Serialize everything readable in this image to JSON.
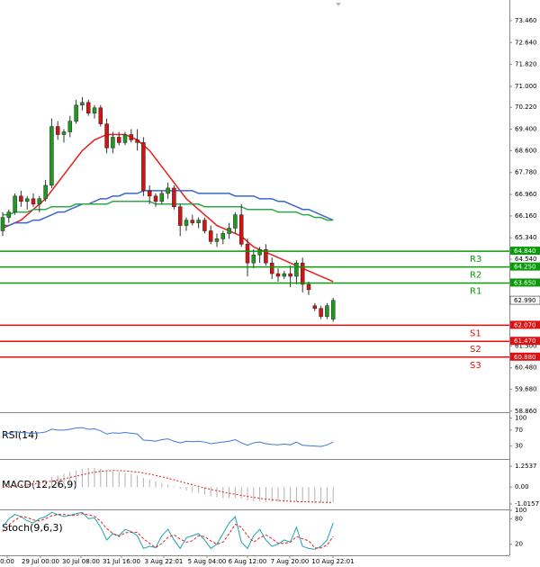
{
  "chart_data": {
    "type": "candlestick",
    "open": [
      65.6,
      66.1,
      66.3,
      66.9,
      66.7,
      66.8,
      66.6,
      66.8,
      67.3,
      69.5,
      69.2,
      69.3,
      69.7,
      70.3,
      70.4,
      70.0,
      70.2,
      69.6,
      68.7,
      69.1,
      68.9,
      69.2,
      69.0,
      68.9,
      67.1,
      66.9,
      66.7,
      67.0,
      67.2,
      66.5,
      65.8,
      66.0,
      65.9,
      66.0,
      65.6,
      65.2,
      65.3,
      65.5,
      65.7,
      66.2,
      65.1,
      64.4,
      64.7,
      64.9,
      64.4,
      64.0,
      63.9,
      64.0,
      63.9,
      64.4,
      63.6,
      62.8,
      62.7,
      62.4,
      62.3
    ],
    "high": [
      66.3,
      66.4,
      67.0,
      67.1,
      66.9,
      67.0,
      66.9,
      67.5,
      69.8,
      69.7,
      69.4,
      69.9,
      70.5,
      70.6,
      70.5,
      70.3,
      70.3,
      69.8,
      69.3,
      69.3,
      69.3,
      69.4,
      69.4,
      69.1,
      67.3,
      67.0,
      67.1,
      67.4,
      67.3,
      66.6,
      66.1,
      66.2,
      66.1,
      66.1,
      65.8,
      65.5,
      65.6,
      65.9,
      66.3,
      66.6,
      65.3,
      64.9,
      65.0,
      65.1,
      64.6,
      64.2,
      64.1,
      64.3,
      64.5,
      64.6,
      63.7,
      62.9,
      62.8,
      62.9,
      63.1
    ],
    "low": [
      65.4,
      65.9,
      66.2,
      66.5,
      66.4,
      66.5,
      66.3,
      66.7,
      67.2,
      69.0,
      68.9,
      69.1,
      69.6,
      70.1,
      69.9,
      69.8,
      69.5,
      68.5,
      68.5,
      68.8,
      68.8,
      68.9,
      68.6,
      66.9,
      66.6,
      66.5,
      66.6,
      66.8,
      66.4,
      65.4,
      65.6,
      65.8,
      65.7,
      65.5,
      65.1,
      65.0,
      65.1,
      65.3,
      65.5,
      65.0,
      63.9,
      64.2,
      64.4,
      64.3,
      63.8,
      63.7,
      63.8,
      63.5,
      63.6,
      63.3,
      63.2,
      62.6,
      62.3,
      62.3,
      62.2
    ],
    "close": [
      66.1,
      66.3,
      66.9,
      66.7,
      66.8,
      66.6,
      66.8,
      67.3,
      69.5,
      69.2,
      69.3,
      69.7,
      70.3,
      70.4,
      70.0,
      70.2,
      69.6,
      68.7,
      69.1,
      68.9,
      69.2,
      69.0,
      68.9,
      67.1,
      66.9,
      66.7,
      67.0,
      67.2,
      66.5,
      65.8,
      66.0,
      65.9,
      66.0,
      65.6,
      65.2,
      65.3,
      65.5,
      65.7,
      66.2,
      65.1,
      64.4,
      64.7,
      64.9,
      64.4,
      64.0,
      63.9,
      64.0,
      63.9,
      64.4,
      63.6,
      63.4,
      62.7,
      62.4,
      62.8,
      63.0
    ],
    "up_color": "#1f9a1f",
    "down_color": "#d41414",
    "ylim": [
      58.82,
      74.23
    ],
    "yticks": [
      {
        "value": 73.46,
        "label": "73.460"
      },
      {
        "value": 72.64,
        "label": "72.640"
      },
      {
        "value": 71.82,
        "label": "71.820"
      },
      {
        "value": 71.0,
        "label": "71.000"
      },
      {
        "value": 70.22,
        "label": "70.220"
      },
      {
        "value": 69.4,
        "label": "69.400"
      },
      {
        "value": 68.6,
        "label": "68.600"
      },
      {
        "value": 67.78,
        "label": "67.780"
      },
      {
        "value": 66.96,
        "label": "66.960"
      },
      {
        "value": 66.16,
        "label": "66.160"
      },
      {
        "value": 65.34,
        "label": "65.340"
      },
      {
        "value": 64.54,
        "label": "64.540"
      },
      {
        "value": 61.3,
        "label": "61.300"
      },
      {
        "value": 60.48,
        "label": "60.480"
      },
      {
        "value": 59.68,
        "label": "59.680"
      },
      {
        "value": 58.86,
        "label": "58.860"
      }
    ],
    "lines": [
      {
        "color": "#e8201a",
        "values": [
          65.7,
          65.8,
          65.9,
          66.0,
          66.2,
          66.4,
          66.6,
          66.8,
          67.1,
          67.4,
          67.7,
          68.0,
          68.3,
          68.6,
          68.8,
          69.0,
          69.1,
          69.2,
          69.2,
          69.2,
          69.2,
          69.1,
          69.0,
          68.8,
          68.6,
          68.3,
          68.0,
          67.7,
          67.4,
          67.1,
          66.8,
          66.6,
          66.4,
          66.2,
          66.0,
          65.8,
          65.7,
          65.6,
          65.5,
          65.4,
          65.2,
          65.0,
          64.9,
          64.8,
          64.7,
          64.6,
          64.5,
          64.4,
          64.3,
          64.2,
          64.1,
          64.0,
          63.9,
          63.8,
          63.7
        ]
      },
      {
        "color": "#3a66d0",
        "values": [
          65.8,
          65.8,
          65.9,
          65.9,
          65.9,
          66.0,
          66.0,
          66.1,
          66.2,
          66.3,
          66.3,
          66.4,
          66.5,
          66.6,
          66.6,
          66.7,
          66.8,
          66.8,
          66.9,
          66.9,
          67.0,
          67.0,
          67.0,
          67.1,
          67.1,
          67.1,
          67.1,
          67.1,
          67.1,
          67.1,
          67.1,
          67.1,
          67.0,
          67.0,
          67.0,
          67.0,
          67.0,
          67.0,
          66.9,
          66.9,
          66.9,
          66.9,
          66.8,
          66.8,
          66.8,
          66.7,
          66.7,
          66.6,
          66.5,
          66.4,
          66.4,
          66.3,
          66.2,
          66.1,
          66.0
        ]
      },
      {
        "color": "#2fa84a",
        "values": [
          66.2,
          66.2,
          66.3,
          66.3,
          66.3,
          66.4,
          66.4,
          66.4,
          66.5,
          66.5,
          66.5,
          66.5,
          66.6,
          66.6,
          66.6,
          66.6,
          66.6,
          66.6,
          66.7,
          66.7,
          66.7,
          66.7,
          66.7,
          66.7,
          66.7,
          66.6,
          66.6,
          66.6,
          66.6,
          66.6,
          66.6,
          66.6,
          66.6,
          66.5,
          66.5,
          66.5,
          66.5,
          66.5,
          66.5,
          66.5,
          66.4,
          66.4,
          66.4,
          66.4,
          66.4,
          66.3,
          66.3,
          66.3,
          66.3,
          66.2,
          66.2,
          66.1,
          66.1,
          66.0,
          66.0
        ]
      }
    ],
    "levels": [
      {
        "label": "R3",
        "value": 64.84,
        "value_label": "64.840",
        "color": "#0a9a0a"
      },
      {
        "label": "R2",
        "value": 64.25,
        "value_label": "64.250",
        "color": "#0a9a0a"
      },
      {
        "label": "R1",
        "value": 63.65,
        "value_label": "63.650",
        "color": "#0a9a0a"
      },
      {
        "label": "S1",
        "value": 62.07,
        "value_label": "62.070",
        "color": "#e01010"
      },
      {
        "label": "S2",
        "value": 61.47,
        "value_label": "61.470",
        "color": "#e01010"
      },
      {
        "label": "S3",
        "value": 60.88,
        "value_label": "60.880",
        "color": "#e01010"
      }
    ],
    "current": {
      "value": 62.99,
      "label": "62.990"
    },
    "xlabels": [
      "0:00",
      "29 Jul 00:00",
      "30 Jul 08:00",
      "31 Jul 16:00",
      "3 Aug 22:01",
      "5 Aug 04:00",
      "6 Aug 12:00",
      "7 Aug 20:00",
      "10 Aug 22:01"
    ],
    "rsi": {
      "title": "RSI(14)",
      "color": "#3a7ad8",
      "ylim": [
        0,
        110
      ],
      "yticks": [
        100,
        70,
        30
      ],
      "values": [
        60,
        62,
        66,
        64,
        63,
        62,
        63,
        65,
        72,
        70,
        70,
        72,
        75,
        76,
        72,
        73,
        68,
        60,
        63,
        62,
        64,
        62,
        60,
        45,
        44,
        42,
        46,
        48,
        42,
        38,
        42,
        41,
        42,
        40,
        36,
        38,
        40,
        42,
        46,
        38,
        32,
        38,
        40,
        36,
        34,
        33,
        35,
        33,
        40,
        32,
        31,
        30,
        29,
        33,
        40
      ]
    },
    "macd": {
      "title": "MACD(12,26,9)",
      "hist_color": "#b0b0b0",
      "signal_color": "#e02020",
      "ylim": [
        -1.34,
        1.58
      ],
      "yticks": [
        1.2537,
        {
          "value": 0,
          "label": "0.00"
        },
        -1.0157
      ],
      "hist": [
        0.05,
        0.1,
        0.15,
        0.2,
        0.25,
        0.3,
        0.35,
        0.45,
        0.6,
        0.7,
        0.8,
        0.9,
        1.0,
        1.1,
        1.15,
        1.15,
        1.1,
        1.0,
        0.95,
        0.9,
        0.85,
        0.8,
        0.7,
        0.55,
        0.45,
        0.35,
        0.25,
        0.15,
        0.05,
        -0.1,
        -0.2,
        -0.3,
        -0.35,
        -0.45,
        -0.55,
        -0.6,
        -0.65,
        -0.65,
        -0.65,
        -0.7,
        -0.8,
        -0.85,
        -0.85,
        -0.9,
        -0.9,
        -0.9,
        -0.9,
        -0.9,
        -0.9,
        -0.9,
        -0.9,
        -0.95,
        -0.95,
        -0.95,
        -0.9
      ],
      "signal": [
        0.0,
        0.03,
        0.06,
        0.1,
        0.14,
        0.19,
        0.24,
        0.3,
        0.36,
        0.43,
        0.5,
        0.58,
        0.66,
        0.74,
        0.82,
        0.9,
        0.95,
        0.98,
        1.0,
        0.99,
        0.97,
        0.94,
        0.9,
        0.85,
        0.78,
        0.7,
        0.62,
        0.53,
        0.44,
        0.34,
        0.24,
        0.14,
        0.05,
        -0.05,
        -0.14,
        -0.22,
        -0.3,
        -0.37,
        -0.43,
        -0.5,
        -0.56,
        -0.62,
        -0.67,
        -0.72,
        -0.76,
        -0.8,
        -0.83,
        -0.85,
        -0.87,
        -0.88,
        -0.89,
        -0.9,
        -0.91,
        -0.92,
        -0.92
      ]
    },
    "stoch": {
      "title": "Stoch(9,6,3)",
      "main_color": "#20a0b0",
      "signal_color": "#e02020",
      "ylim": [
        -4,
        102
      ],
      "yticks": [
        100,
        80,
        20
      ],
      "main": [
        60,
        80,
        90,
        85,
        75,
        70,
        80,
        85,
        95,
        90,
        85,
        88,
        92,
        95,
        80,
        82,
        60,
        30,
        45,
        40,
        55,
        50,
        40,
        10,
        15,
        12,
        40,
        55,
        30,
        10,
        35,
        40,
        45,
        30,
        10,
        20,
        45,
        70,
        85,
        25,
        10,
        40,
        55,
        30,
        15,
        20,
        30,
        25,
        60,
        15,
        10,
        8,
        15,
        30,
        70
      ],
      "signal": [
        50,
        65,
        77,
        85,
        83,
        77,
        75,
        80,
        87,
        90,
        90,
        88,
        88,
        92,
        89,
        86,
        74,
        57,
        45,
        38,
        47,
        48,
        48,
        33,
        22,
        12,
        22,
        36,
        42,
        32,
        25,
        28,
        40,
        38,
        28,
        20,
        25,
        45,
        67,
        60,
        40,
        25,
        35,
        42,
        33,
        22,
        22,
        25,
        38,
        33,
        28,
        11,
        11,
        18,
        38
      ]
    }
  }
}
